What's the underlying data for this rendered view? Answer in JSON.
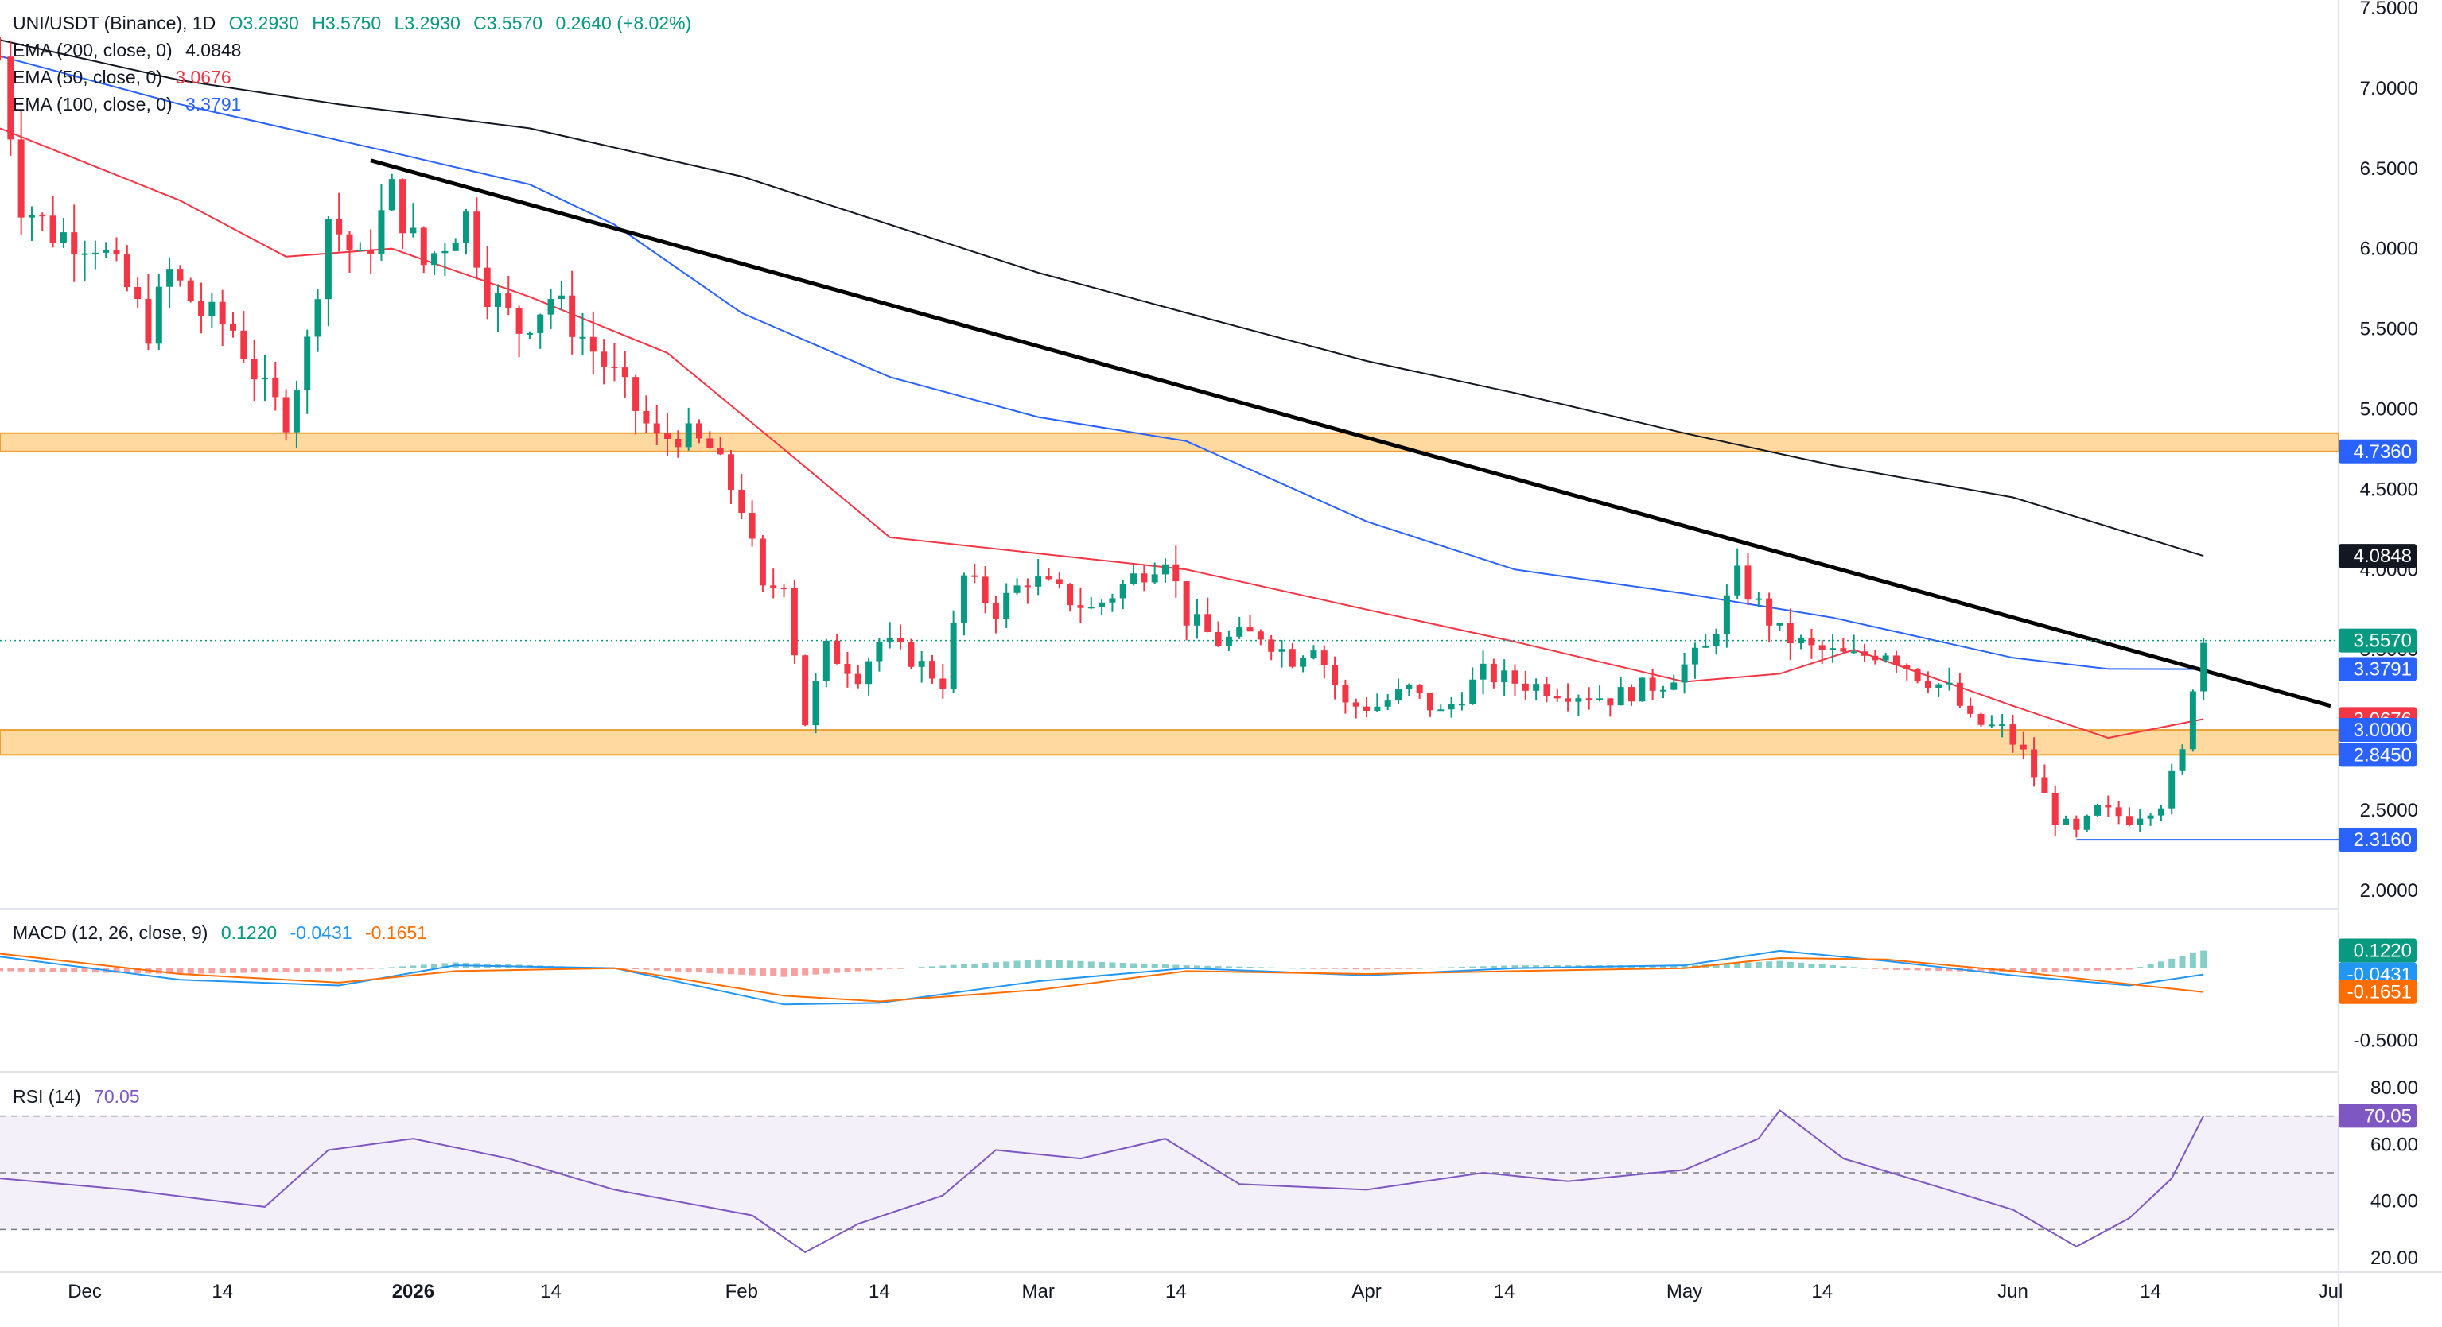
{
  "header": {
    "symbol": "UNI/USDT (Binance), 1D",
    "open": "O3.2930",
    "high": "H3.5750",
    "low": "L3.2930",
    "close": "C3.5570",
    "change": "0.2640 (+8.02%)"
  },
  "indicators": {
    "ema200": {
      "label": "EMA (200, close, 0)",
      "value": "4.0848",
      "color": "#131722"
    },
    "ema50": {
      "label": "EMA (50, close, 0)",
      "value": "3.0676",
      "color": "#f23645"
    },
    "ema100": {
      "label": "EMA (100, close, 0)",
      "value": "3.3791",
      "color": "#2962ff"
    },
    "macd": {
      "label": "MACD (12, 26, close, 9)",
      "hist": "0.1220",
      "macd": "-0.0431",
      "signal": "-0.1651"
    },
    "rsi": {
      "label": "RSI (14)",
      "value": "70.05"
    }
  },
  "price_axis": {
    "ticks": [
      "7.5000",
      "7.0000",
      "6.5000",
      "6.0000",
      "5.5000",
      "5.0000",
      "4.5000",
      "4.0000",
      "3.5000",
      "3.0000",
      "2.5000",
      "2.0000"
    ],
    "labels": [
      {
        "text": "4.7360",
        "color": "#2962ff"
      },
      {
        "text": "4.0848",
        "color": "#131722"
      },
      {
        "text": "3.5570",
        "color": "#089981"
      },
      {
        "text": "3.3791",
        "color": "#2962ff"
      },
      {
        "text": "3.0676",
        "color": "#f23645"
      },
      {
        "text": "3.0000",
        "color": "#2962ff"
      },
      {
        "text": "2.8450",
        "color": "#2962ff"
      },
      {
        "text": "2.3160",
        "color": "#2962ff"
      }
    ]
  },
  "macd_axis": {
    "ticks": [
      "-0.5000"
    ],
    "labels": [
      {
        "text": "0.1220",
        "color": "#089981"
      },
      {
        "text": "-0.0431",
        "color": "#2196f3"
      },
      {
        "text": "-0.1651",
        "color": "#ff6d00"
      }
    ]
  },
  "rsi_axis": {
    "ticks": [
      "80.00",
      "60.00",
      "40.00",
      "20.00"
    ],
    "label": {
      "text": "70.05",
      "color": "#7e57c2"
    }
  },
  "time_axis": [
    "Dec",
    "14",
    "2026",
    "14",
    "Feb",
    "14",
    "Mar",
    "14",
    "Apr",
    "14",
    "May",
    "14",
    "Jun",
    "14",
    "Jul"
  ],
  "chart_data": {
    "type": "candlestick",
    "timeframe": "1D",
    "x_range": [
      "2025-11-23",
      "2026-07-01"
    ],
    "ylim": [
      1.9,
      7.55
    ],
    "y_axis_ticks": [
      2.0,
      2.5,
      3.0,
      3.5,
      4.0,
      4.5,
      5.0,
      5.5,
      6.0,
      6.5,
      7.0,
      7.5
    ],
    "daily_close_path": [
      [
        "2025-11-23",
        7.2
      ],
      [
        "2025-11-25",
        6.3
      ],
      [
        "2025-11-28",
        6.1
      ],
      [
        "2025-12-02",
        6.05
      ],
      [
        "2025-12-05",
        5.75
      ],
      [
        "2025-12-07",
        5.5
      ],
      [
        "2025-12-09",
        5.85
      ],
      [
        "2025-12-12",
        5.6
      ],
      [
        "2025-12-15",
        5.5
      ],
      [
        "2025-12-18",
        5.1
      ],
      [
        "2025-12-20",
        4.95
      ],
      [
        "2025-12-22",
        5.4
      ],
      [
        "2025-12-24",
        6.2
      ],
      [
        "2025-12-27",
        5.9
      ],
      [
        "2025-12-30",
        6.35
      ],
      [
        "2026-01-02",
        5.9
      ],
      [
        "2026-01-04",
        6.05
      ],
      [
        "2026-01-06",
        6.2
      ],
      [
        "2026-01-08",
        5.75
      ],
      [
        "2026-01-11",
        5.5
      ],
      [
        "2026-01-14",
        5.7
      ],
      [
        "2026-01-17",
        5.45
      ],
      [
        "2026-01-20",
        5.2
      ],
      [
        "2026-01-24",
        4.8
      ],
      [
        "2026-01-26",
        4.85
      ],
      [
        "2026-01-29",
        4.75
      ],
      [
        "2026-02-01",
        4.4
      ],
      [
        "2026-02-03",
        3.85
      ],
      [
        "2026-02-05",
        3.95
      ],
      [
        "2026-02-07",
        3.05
      ],
      [
        "2026-02-09",
        3.5
      ],
      [
        "2026-02-12",
        3.35
      ],
      [
        "2026-02-14",
        3.55
      ],
      [
        "2026-02-17",
        3.45
      ],
      [
        "2026-02-20",
        3.3
      ],
      [
        "2026-02-22",
        3.95
      ],
      [
        "2026-02-25",
        3.75
      ],
      [
        "2026-02-28",
        3.95
      ],
      [
        "2026-03-03",
        3.85
      ],
      [
        "2026-03-06",
        3.75
      ],
      [
        "2026-03-09",
        3.9
      ],
      [
        "2026-03-13",
        4.1
      ],
      [
        "2026-03-15",
        3.7
      ],
      [
        "2026-03-18",
        3.55
      ],
      [
        "2026-03-22",
        3.6
      ],
      [
        "2026-03-25",
        3.45
      ],
      [
        "2026-03-27",
        3.55
      ],
      [
        "2026-03-30",
        3.15
      ],
      [
        "2026-04-02",
        3.15
      ],
      [
        "2026-04-05",
        3.25
      ],
      [
        "2026-04-08",
        3.1
      ],
      [
        "2026-04-12",
        3.35
      ],
      [
        "2026-04-15",
        3.3
      ],
      [
        "2026-04-19",
        3.25
      ],
      [
        "2026-04-24",
        3.2
      ],
      [
        "2026-04-29",
        3.3
      ],
      [
        "2026-05-03",
        3.5
      ],
      [
        "2026-05-06",
        3.95
      ],
      [
        "2026-05-10",
        3.6
      ],
      [
        "2026-05-13",
        3.5
      ],
      [
        "2026-05-17",
        3.45
      ],
      [
        "2026-05-20",
        3.5
      ],
      [
        "2026-05-23",
        3.35
      ],
      [
        "2026-05-26",
        3.25
      ],
      [
        "2026-05-28",
        3.05
      ],
      [
        "2026-05-31",
        3.0
      ],
      [
        "2026-06-02",
        2.85
      ],
      [
        "2026-06-05",
        2.45
      ],
      [
        "2026-06-07",
        2.35
      ],
      [
        "2026-06-09",
        2.5
      ],
      [
        "2026-06-12",
        2.45
      ],
      [
        "2026-06-15",
        2.55
      ],
      [
        "2026-06-17",
        2.85
      ],
      [
        "2026-06-18",
        3.29
      ],
      [
        "2026-06-19",
        3.557
      ]
    ],
    "ema200": [
      [
        "2025-11-23",
        7.3
      ],
      [
        "2025-12-10",
        7.05
      ],
      [
        "2025-12-25",
        6.9
      ],
      [
        "2026-01-12",
        6.75
      ],
      [
        "2026-02-01",
        6.45
      ],
      [
        "2026-02-15",
        6.15
      ],
      [
        "2026-03-01",
        5.85
      ],
      [
        "2026-03-15",
        5.6
      ],
      [
        "2026-04-01",
        5.3
      ],
      [
        "2026-04-15",
        5.1
      ],
      [
        "2026-05-01",
        4.85
      ],
      [
        "2026-05-15",
        4.65
      ],
      [
        "2026-06-01",
        4.45
      ],
      [
        "2026-06-19",
        4.0848
      ]
    ],
    "ema100": [
      [
        "2025-11-23",
        7.2
      ],
      [
        "2025-12-10",
        6.9
      ],
      [
        "2025-12-20",
        6.75
      ],
      [
        "2025-12-30",
        6.6
      ],
      [
        "2026-01-12",
        6.4
      ],
      [
        "2026-01-20",
        6.15
      ],
      [
        "2026-02-01",
        5.6
      ],
      [
        "2026-02-15",
        5.2
      ],
      [
        "2026-03-01",
        4.95
      ],
      [
        "2026-03-15",
        4.8
      ],
      [
        "2026-04-01",
        4.3
      ],
      [
        "2026-04-15",
        4.0
      ],
      [
        "2026-05-01",
        3.85
      ],
      [
        "2026-05-15",
        3.7
      ],
      [
        "2026-06-01",
        3.45
      ],
      [
        "2026-06-10",
        3.38
      ],
      [
        "2026-06-19",
        3.3791
      ]
    ],
    "ema50": [
      [
        "2025-11-23",
        6.75
      ],
      [
        "2025-12-10",
        6.3
      ],
      [
        "2025-12-20",
        5.95
      ],
      [
        "2025-12-30",
        6.0
      ],
      [
        "2026-01-12",
        5.7
      ],
      [
        "2026-01-25",
        5.35
      ],
      [
        "2026-02-05",
        4.75
      ],
      [
        "2026-02-15",
        4.2
      ],
      [
        "2026-03-01",
        4.1
      ],
      [
        "2026-03-15",
        4.0
      ],
      [
        "2026-04-01",
        3.75
      ],
      [
        "2026-04-15",
        3.55
      ],
      [
        "2026-05-01",
        3.3
      ],
      [
        "2026-05-10",
        3.35
      ],
      [
        "2026-05-17",
        3.5
      ],
      [
        "2026-06-01",
        3.15
      ],
      [
        "2026-06-10",
        2.95
      ],
      [
        "2026-06-19",
        3.0676
      ]
    ],
    "trendline": {
      "from": [
        "2025-12-28",
        6.55
      ],
      "to": [
        "2026-07-01",
        3.15
      ],
      "color": "#000000"
    },
    "zones": [
      {
        "low": 4.736,
        "high": 4.85,
        "color": "#ffcc80"
      },
      {
        "low": 2.845,
        "high": 3.0,
        "color": "#ffcc80"
      }
    ],
    "support_line": {
      "value": 2.316,
      "from": "2026-06-07"
    },
    "last_price": 3.557,
    "macd": {
      "macd_line": [
        [
          "2025-11-23",
          0.08
        ],
        [
          "2025-12-10",
          -0.08
        ],
        [
          "2025-12-25",
          -0.12
        ],
        [
          "2026-01-05",
          0.02
        ],
        [
          "2026-01-20",
          0.0
        ],
        [
          "2026-02-05",
          -0.25
        ],
        [
          "2026-02-14",
          -0.24
        ],
        [
          "2026-03-01",
          -0.09
        ],
        [
          "2026-03-15",
          0.0
        ],
        [
          "2026-04-01",
          -0.05
        ],
        [
          "2026-04-15",
          0.0
        ],
        [
          "2026-05-01",
          0.02
        ],
        [
          "2026-05-10",
          0.12
        ],
        [
          "2026-05-20",
          0.05
        ],
        [
          "2026-06-01",
          -0.05
        ],
        [
          "2026-06-12",
          -0.12
        ],
        [
          "2026-06-19",
          -0.0431
        ]
      ],
      "signal_line": [
        [
          "2025-11-23",
          0.1
        ],
        [
          "2025-12-10",
          -0.04
        ],
        [
          "2025-12-25",
          -0.1
        ],
        [
          "2026-01-05",
          -0.02
        ],
        [
          "2026-01-20",
          0.0
        ],
        [
          "2026-02-05",
          -0.19
        ],
        [
          "2026-02-14",
          -0.23
        ],
        [
          "2026-03-01",
          -0.15
        ],
        [
          "2026-03-15",
          -0.02
        ],
        [
          "2026-04-01",
          -0.04
        ],
        [
          "2026-04-15",
          -0.02
        ],
        [
          "2026-05-01",
          0.0
        ],
        [
          "2026-05-10",
          0.07
        ],
        [
          "2026-05-20",
          0.06
        ],
        [
          "2026-06-01",
          -0.02
        ],
        [
          "2026-06-12",
          -0.11
        ],
        [
          "2026-06-19",
          -0.1651
        ]
      ],
      "histogram_last": 0.122,
      "ylim": [
        -0.7,
        0.4
      ]
    },
    "rsi": {
      "values": [
        [
          "2025-11-23",
          48
        ],
        [
          "2025-12-05",
          44
        ],
        [
          "2025-12-18",
          38
        ],
        [
          "2025-12-24",
          58
        ],
        [
          "2026-01-01",
          62
        ],
        [
          "2026-01-10",
          55
        ],
        [
          "2026-01-20",
          44
        ],
        [
          "2026-02-02",
          35
        ],
        [
          "2026-02-07",
          22
        ],
        [
          "2026-02-12",
          32
        ],
        [
          "2026-02-20",
          42
        ],
        [
          "2026-02-25",
          58
        ],
        [
          "2026-03-05",
          55
        ],
        [
          "2026-03-13",
          62
        ],
        [
          "2026-03-20",
          46
        ],
        [
          "2026-04-01",
          44
        ],
        [
          "2026-04-12",
          50
        ],
        [
          "2026-04-20",
          47
        ],
        [
          "2026-05-01",
          51
        ],
        [
          "2026-05-08",
          62
        ],
        [
          "2026-05-10",
          72
        ],
        [
          "2026-05-16",
          55
        ],
        [
          "2026-05-25",
          45
        ],
        [
          "2026-06-01",
          37
        ],
        [
          "2026-06-07",
          24
        ],
        [
          "2026-06-12",
          34
        ],
        [
          "2026-06-16",
          48
        ],
        [
          "2026-06-19",
          70.05
        ]
      ],
      "levels": [
        70,
        50,
        30
      ],
      "ylim": [
        15,
        85
      ]
    }
  }
}
